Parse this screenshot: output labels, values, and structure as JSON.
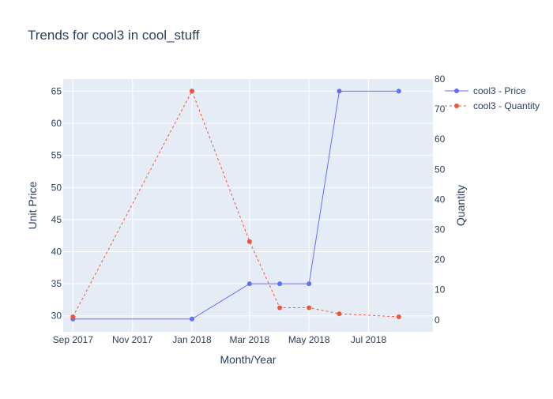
{
  "chart_data": {
    "type": "line",
    "title": "Trends for cool3 in cool_stuff",
    "xlabel": "Month/Year",
    "ylabel": "Unit Price",
    "y2label": "Quantity",
    "x_ticks": [
      "Sep 2017",
      "Nov 2017",
      "Jan 2018",
      "Mar 2018",
      "May 2018",
      "Jul 2018"
    ],
    "y_ticks": [
      30,
      35,
      40,
      45,
      50,
      55,
      60,
      65
    ],
    "y2_ticks": [
      0,
      10,
      20,
      30,
      40,
      50,
      60,
      70,
      80
    ],
    "xlim": [
      "2017-08-22",
      "2018-09-05"
    ],
    "ylim": [
      27.5,
      66.9
    ],
    "y2lim": [
      -4,
      80
    ],
    "legend_position": "top-right",
    "grid": true,
    "series": [
      {
        "name": "cool3 - Price",
        "axis": "y",
        "color": "#636efa",
        "dash": "solid",
        "x": [
          "2017-09-01",
          "2018-01-01",
          "2018-03-01",
          "2018-04-01",
          "2018-05-01",
          "2018-06-01",
          "2018-08-01"
        ],
        "values": [
          29.5,
          29.5,
          35,
          35,
          35,
          65,
          65
        ]
      },
      {
        "name": "cool3 - Quantity",
        "axis": "y2",
        "color": "#ef553b",
        "dash": "dash",
        "x": [
          "2017-09-01",
          "2018-01-01",
          "2018-03-01",
          "2018-04-01",
          "2018-05-01",
          "2018-06-01",
          "2018-08-01"
        ],
        "values": [
          1,
          76,
          26,
          4,
          4,
          2,
          1
        ]
      }
    ]
  }
}
